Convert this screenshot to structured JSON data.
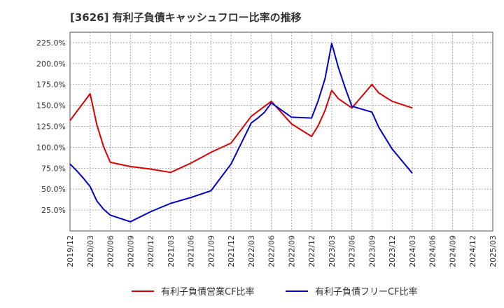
{
  "chart_data": {
    "type": "line",
    "title": "[3626]  有利子負債キャッシュフロー比率の推移",
    "ylim": [
      0,
      237.5
    ],
    "yticks": [
      "25.0%",
      "50.0%",
      "75.0%",
      "100.0%",
      "125.0%",
      "150.0%",
      "175.0%",
      "200.0%",
      "225.0%"
    ],
    "ytick_values": [
      25,
      50,
      75,
      100,
      125,
      150,
      175,
      200,
      225
    ],
    "xticks": [
      "2019/12",
      "2020/03",
      "2020/06",
      "2020/09",
      "2020/12",
      "2021/03",
      "2021/06",
      "2021/09",
      "2021/12",
      "2022/03",
      "2022/06",
      "2022/09",
      "2022/12",
      "2023/03",
      "2023/06",
      "2023/09",
      "2023/12",
      "2024/03",
      "2024/06",
      "2024/09",
      "2024/12",
      "2025/03"
    ],
    "grid": true,
    "legend_position": "bottom",
    "series": [
      {
        "name": "有利子負債営業CF比率",
        "color": "#dd0000",
        "x": [
          "2019/12",
          "2020/03",
          "2020/04",
          "2020/05",
          "2020/06",
          "2020/09",
          "2020/12",
          "2021/03",
          "2021/06",
          "2021/09",
          "2021/12",
          "2022/03",
          "2022/06",
          "2022/09",
          "2022/12",
          "2023/01",
          "2023/02",
          "2023/03",
          "2023/04",
          "2023/06",
          "2023/09",
          "2023/10",
          "2023/12",
          "2024/03"
        ],
        "values": [
          132,
          164,
          127,
          101,
          82,
          77,
          74,
          70,
          81,
          94,
          105,
          137,
          155,
          128,
          113,
          126,
          144,
          168,
          158,
          147,
          175,
          165,
          155,
          147
        ]
      },
      {
        "name": "有利子負債フリーCF比率",
        "color": "#0000cc",
        "x": [
          "2019/12",
          "2020/01",
          "2020/02",
          "2020/03",
          "2020/04",
          "2020/05",
          "2020/06",
          "2020/09",
          "2020/12",
          "2021/03",
          "2021/06",
          "2021/09",
          "2021/12",
          "2022/03",
          "2022/04",
          "2022/05",
          "2022/06",
          "2022/09",
          "2022/12",
          "2023/01",
          "2023/02",
          "2023/03",
          "2023/04",
          "2023/05",
          "2023/06",
          "2023/09",
          "2023/10",
          "2023/12",
          "2024/03"
        ],
        "values": [
          80,
          72,
          63,
          53,
          36,
          26,
          19,
          11,
          23,
          33,
          40,
          48,
          80,
          129,
          135,
          142,
          153,
          136,
          135,
          156,
          182,
          224,
          195,
          171,
          149,
          142,
          124,
          98,
          69
        ]
      }
    ]
  }
}
